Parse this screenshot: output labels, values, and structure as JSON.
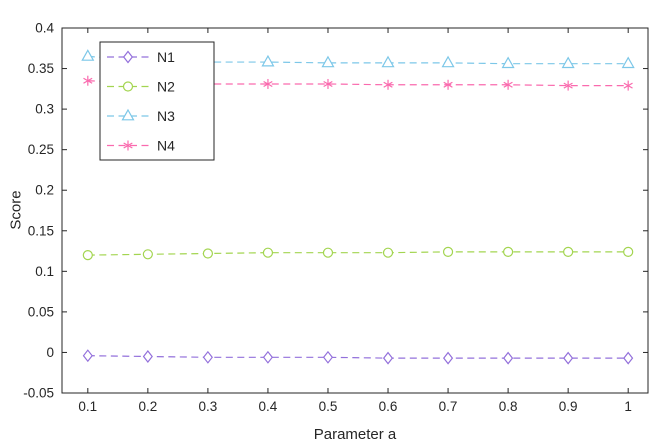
{
  "chart_data": {
    "type": "line",
    "title": "",
    "xlabel": "Parameter a",
    "ylabel": "Score",
    "x": [
      0.1,
      0.2,
      0.3,
      0.4,
      0.5,
      0.6,
      0.7,
      0.8,
      0.9,
      1.0
    ],
    "series": [
      {
        "name": "N1",
        "marker": "diamond",
        "color": "#9370DB",
        "values": [
          -0.004,
          -0.005,
          -0.006,
          -0.006,
          -0.006,
          -0.007,
          -0.007,
          -0.007,
          -0.007,
          -0.007
        ]
      },
      {
        "name": "N2",
        "marker": "circle",
        "color": "#a3d550",
        "values": [
          0.12,
          0.121,
          0.122,
          0.123,
          0.123,
          0.123,
          0.124,
          0.124,
          0.124,
          0.124
        ]
      },
      {
        "name": "N3",
        "marker": "triangle",
        "color": "#7cc7e8",
        "values": [
          0.365,
          0.36,
          0.358,
          0.358,
          0.357,
          0.357,
          0.357,
          0.356,
          0.356,
          0.356
        ]
      },
      {
        "name": "N4",
        "marker": "asterisk",
        "color": "#fa6aae",
        "values": [
          0.335,
          0.332,
          0.331,
          0.331,
          0.331,
          0.33,
          0.33,
          0.33,
          0.329,
          0.329
        ]
      }
    ],
    "line_style": "dashed",
    "xlim": [
      0.057,
      1.033
    ],
    "ylim": [
      -0.05,
      0.4
    ],
    "xticks": [
      0.1,
      0.2,
      0.3,
      0.4,
      0.5,
      0.6,
      0.7,
      0.8,
      0.9,
      1.0
    ],
    "yticks": [
      -0.05,
      0,
      0.05,
      0.1,
      0.15,
      0.2,
      0.25,
      0.3,
      0.35,
      0.4
    ],
    "grid": false,
    "legend_position": "upper-left",
    "legend_labels": [
      "N1",
      "N2",
      "N3",
      "N4"
    ],
    "axis_color": "#262626",
    "background": "#ffffff"
  }
}
